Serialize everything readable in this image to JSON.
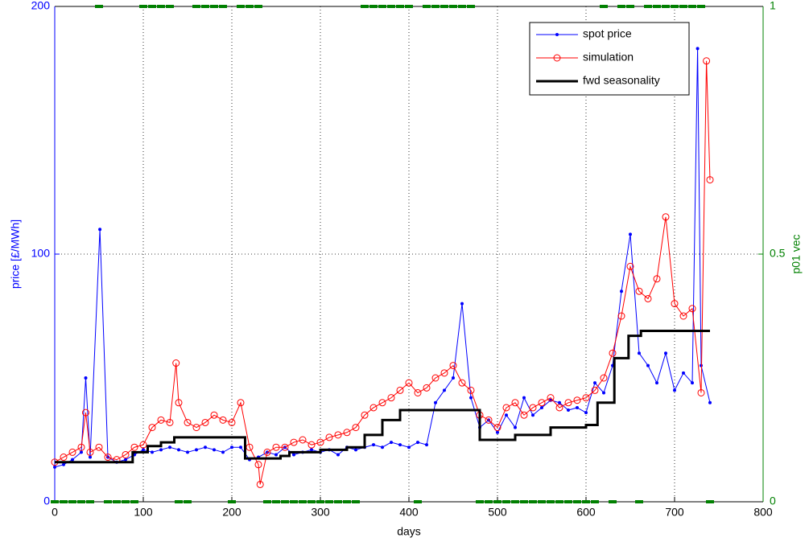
{
  "chart_data": {
    "type": "line",
    "xlabel": "days",
    "ylabel": "price [£/MWh]",
    "y2label": "p01 vec",
    "xlim": [
      0,
      800
    ],
    "xticks": [
      0,
      100,
      200,
      300,
      400,
      500,
      600,
      700,
      800
    ],
    "ylim": [
      0,
      200
    ],
    "yticks": [
      0,
      100,
      200
    ],
    "y2lim": [
      0,
      1
    ],
    "y2ticks": [
      0,
      0.5,
      1
    ],
    "y_color": "#0000ff",
    "y2_color": "#008000",
    "grid": true,
    "legend": "upper right",
    "series": [
      {
        "name": "spot price",
        "color": "#0000ff",
        "marker": "dot",
        "x": [
          0,
          10,
          20,
          30,
          35,
          40,
          51,
          60,
          70,
          80,
          90,
          100,
          110,
          120,
          130,
          140,
          150,
          160,
          170,
          180,
          190,
          200,
          210,
          220,
          230,
          240,
          250,
          260,
          270,
          280,
          290,
          300,
          310,
          320,
          330,
          340,
          350,
          360,
          370,
          380,
          390,
          400,
          410,
          420,
          430,
          440,
          450,
          460,
          470,
          480,
          490,
          500,
          510,
          520,
          530,
          540,
          550,
          560,
          570,
          580,
          590,
          600,
          610,
          620,
          630,
          640,
          650,
          660,
          670,
          680,
          690,
          700,
          710,
          720,
          726,
          730,
          740
        ],
        "values": [
          14,
          15,
          17,
          20,
          50,
          18,
          110,
          18,
          16,
          17,
          19,
          21,
          20,
          21,
          22,
          21,
          20,
          21,
          22,
          21,
          20,
          22,
          22,
          17,
          18,
          20,
          19,
          22,
          19,
          20,
          21,
          20,
          21,
          19,
          22,
          21,
          22,
          23,
          22,
          24,
          23,
          22,
          24,
          23,
          40,
          45,
          50,
          80,
          42,
          30,
          33,
          28,
          35,
          30,
          42,
          35,
          38,
          41,
          40,
          37,
          38,
          36,
          48,
          44,
          55,
          85,
          108,
          60,
          55,
          48,
          60,
          45,
          52,
          48,
          183,
          55,
          40
        ]
      },
      {
        "name": "simulation",
        "color": "#ff0000",
        "marker": "circle",
        "x": [
          0,
          10,
          20,
          30,
          35,
          40,
          50,
          60,
          70,
          80,
          90,
          100,
          110,
          120,
          130,
          137,
          140,
          150,
          160,
          170,
          180,
          190,
          200,
          210,
          220,
          230,
          232,
          240,
          250,
          260,
          270,
          280,
          290,
          300,
          310,
          320,
          330,
          340,
          350,
          360,
          370,
          380,
          390,
          400,
          410,
          420,
          430,
          440,
          450,
          460,
          470,
          480,
          490,
          500,
          510,
          520,
          530,
          540,
          550,
          560,
          570,
          580,
          590,
          600,
          610,
          620,
          630,
          640,
          650,
          660,
          670,
          680,
          690,
          700,
          710,
          720,
          730,
          736,
          740
        ],
        "values": [
          16,
          18,
          20,
          22,
          36,
          20,
          22,
          18,
          17,
          19,
          22,
          23,
          30,
          33,
          32,
          56,
          40,
          32,
          30,
          32,
          35,
          33,
          32,
          40,
          22,
          15,
          7,
          20,
          22,
          22,
          24,
          25,
          23,
          24,
          26,
          27,
          28,
          30,
          35,
          38,
          40,
          42,
          45,
          48,
          44,
          46,
          50,
          52,
          55,
          48,
          45,
          35,
          33,
          30,
          38,
          40,
          35,
          38,
          40,
          42,
          38,
          40,
          41,
          42,
          45,
          50,
          60,
          75,
          95,
          85,
          82,
          90,
          115,
          80,
          75,
          78,
          44,
          178,
          130
        ]
      },
      {
        "name": "fwd seasonality",
        "color": "#000000",
        "marker": "none",
        "x": [
          0,
          88,
          88,
          105,
          105,
          120,
          120,
          135,
          135,
          215,
          215,
          255,
          255,
          265,
          265,
          300,
          300,
          330,
          330,
          350,
          350,
          370,
          370,
          390,
          390,
          480,
          480,
          520,
          520,
          560,
          560,
          600,
          600,
          613,
          613,
          632,
          632,
          648,
          648,
          662,
          662,
          740
        ],
        "values": [
          16,
          16,
          20,
          20,
          22.5,
          22.5,
          24,
          24,
          26,
          26,
          17.5,
          17.5,
          18.5,
          18.5,
          20,
          20,
          21,
          21,
          22,
          22,
          27,
          27,
          33,
          33,
          37,
          37,
          25,
          25,
          27,
          27,
          30,
          30,
          31,
          31,
          40,
          40,
          58,
          58,
          67,
          67,
          69,
          69
        ]
      }
    ],
    "p01": {
      "color": "#008000",
      "axis": "y2",
      "x": [
        0,
        10,
        20,
        30,
        40,
        50,
        60,
        70,
        80,
        90,
        100,
        110,
        120,
        130,
        140,
        150,
        160,
        170,
        180,
        190,
        200,
        210,
        220,
        230,
        240,
        250,
        260,
        270,
        280,
        290,
        300,
        310,
        320,
        330,
        340,
        350,
        360,
        370,
        380,
        390,
        400,
        410,
        420,
        430,
        440,
        450,
        460,
        470,
        480,
        490,
        500,
        510,
        520,
        530,
        540,
        550,
        560,
        570,
        580,
        590,
        600,
        610,
        620,
        630,
        640,
        650,
        660,
        670,
        680,
        690,
        700,
        710,
        720,
        730,
        740
      ],
      "values": [
        0,
        0,
        0,
        0,
        0,
        1,
        0,
        0,
        0,
        0,
        1,
        1,
        1,
        1,
        0,
        0,
        1,
        1,
        1,
        1,
        0,
        1,
        1,
        1,
        0,
        0,
        0,
        0,
        0,
        0,
        0,
        0,
        0,
        0,
        0,
        1,
        1,
        1,
        1,
        1,
        1,
        0,
        1,
        1,
        1,
        1,
        1,
        1,
        0,
        0,
        0,
        0,
        0,
        0,
        0,
        0,
        0,
        0,
        0,
        0,
        0,
        0,
        1,
        0,
        1,
        1,
        0,
        1,
        1,
        1,
        1,
        1,
        1,
        1,
        0
      ]
    }
  }
}
